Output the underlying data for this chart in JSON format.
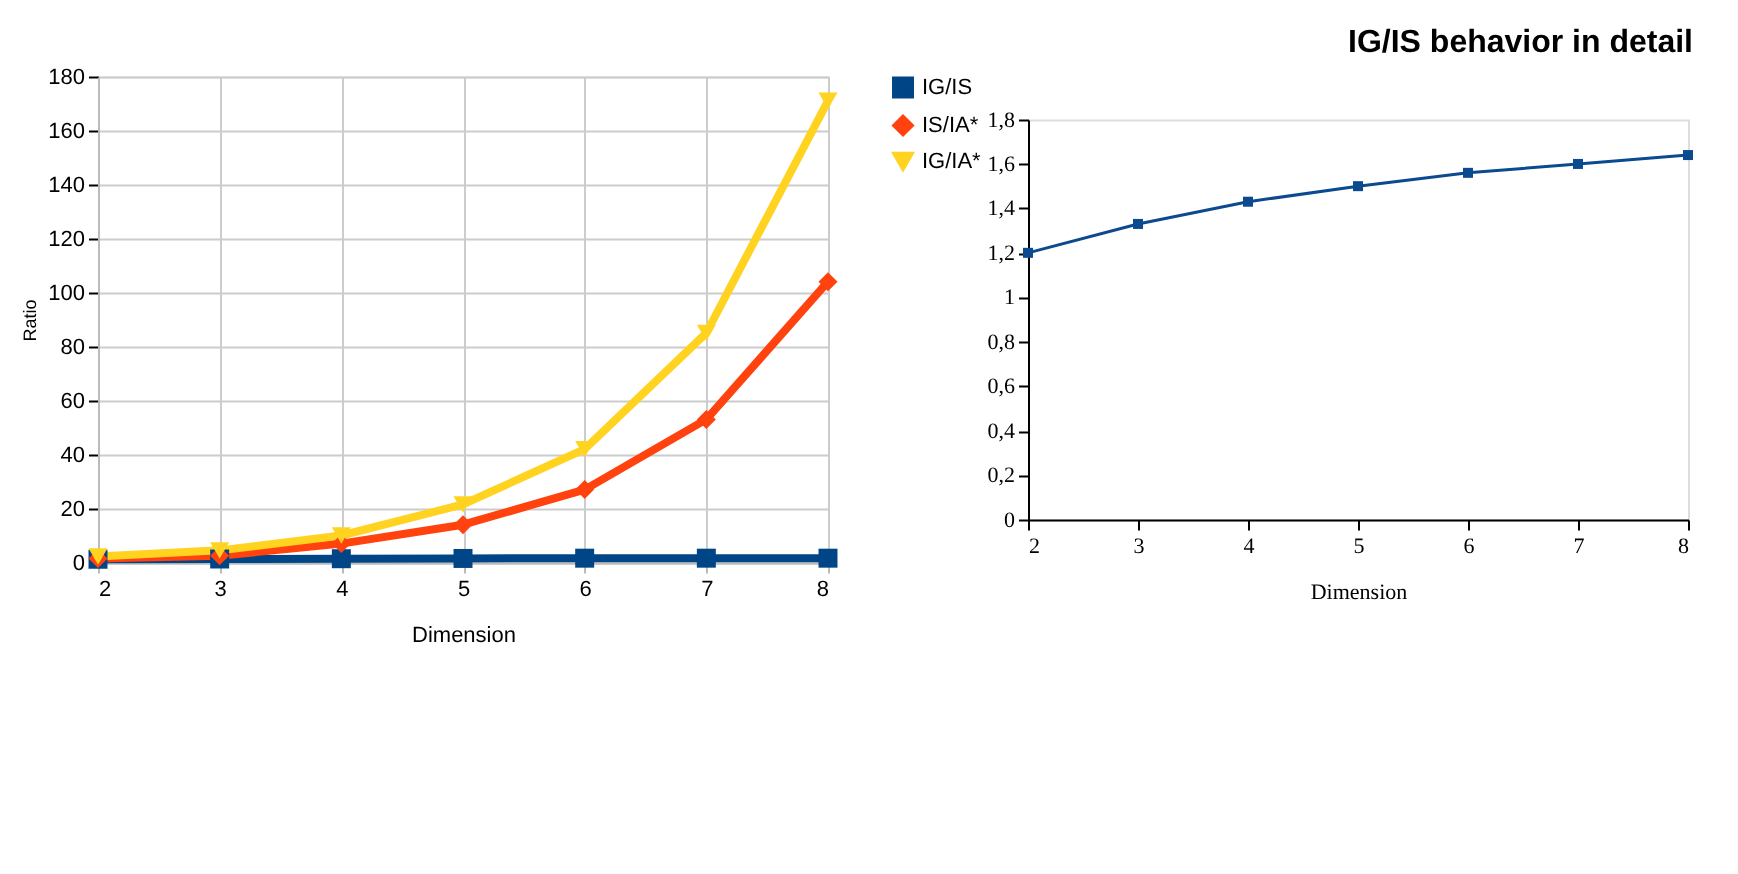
{
  "chart_data": [
    {
      "type": "line",
      "xlabel": "Dimension",
      "ylabel": "Ratio",
      "x": [
        2,
        3,
        4,
        5,
        6,
        7,
        8
      ],
      "xlim": [
        2,
        8
      ],
      "xticks": [
        2,
        3,
        4,
        5,
        6,
        7,
        8
      ],
      "ylim": [
        0,
        180
      ],
      "yticks": [
        0,
        20,
        40,
        60,
        80,
        100,
        120,
        140,
        160,
        180
      ],
      "grid": true,
      "legend": "right",
      "series": [
        {
          "name": "IG/IS",
          "color": "#004586",
          "marker": "square",
          "values": [
            1.2,
            1.3,
            1.4,
            1.5,
            1.6,
            1.6,
            1.6
          ]
        },
        {
          "name": "IS/IA*",
          "color": "#ff420e",
          "marker": "diamond",
          "values": [
            1.5,
            2.5,
            7,
            14,
            27,
            53,
            104
          ]
        },
        {
          "name": "IG/IA*",
          "color": "#ffd320",
          "marker": "triangle",
          "values": [
            2.2,
            4.5,
            10,
            21.5,
            42,
            85,
            171
          ]
        }
      ]
    },
    {
      "type": "line",
      "title": "IG/IS behavior in detail",
      "xlabel": "Dimension",
      "x": [
        2,
        3,
        4,
        5,
        6,
        7,
        8
      ],
      "xlim": [
        2,
        8
      ],
      "xticks": [
        2,
        3,
        4,
        5,
        6,
        7,
        8
      ],
      "ylim": [
        0,
        1.8
      ],
      "yticks": [
        0,
        {
          "value": 0.2,
          "label": "0,2"
        },
        {
          "value": 0.4,
          "label": "0,4"
        },
        {
          "value": 0.6,
          "label": "0,6"
        },
        {
          "value": 0.8,
          "label": "0,8"
        },
        1,
        {
          "value": 1.2,
          "label": "1,2"
        },
        {
          "value": 1.4,
          "label": "1,4"
        },
        {
          "value": 1.6,
          "label": "1,6"
        },
        {
          "value": 1.8,
          "label": "1,8"
        }
      ],
      "grid": false,
      "marker": "square",
      "series": [
        {
          "color": "#0b4a8f",
          "values": [
            1.2,
            1.33,
            1.43,
            1.5,
            1.56,
            1.6,
            1.64
          ]
        }
      ]
    }
  ]
}
